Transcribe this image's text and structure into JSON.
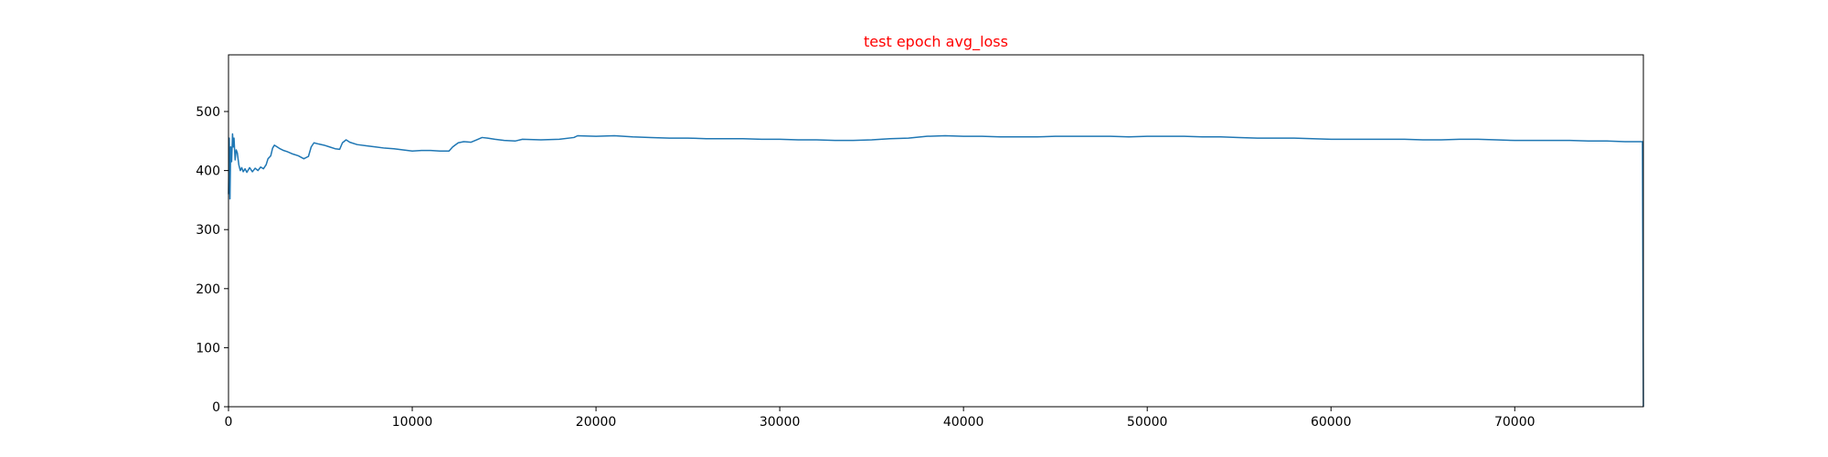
{
  "chart_data": {
    "type": "line",
    "title": "test epoch avg_loss",
    "title_color": "#ff0000",
    "xlabel": "",
    "ylabel": "",
    "xlim": [
      0,
      77000
    ],
    "ylim": [
      0,
      596
    ],
    "xticks": [
      0,
      10000,
      20000,
      30000,
      40000,
      50000,
      60000,
      70000
    ],
    "yticks": [
      0,
      100,
      200,
      300,
      400,
      500
    ],
    "grid": false,
    "line_color": "#1f77b4",
    "series": [
      {
        "values": [
          [
            0,
            360
          ],
          [
            40,
            455
          ],
          [
            80,
            352
          ],
          [
            120,
            440
          ],
          [
            170,
            415
          ],
          [
            220,
            462
          ],
          [
            260,
            440
          ],
          [
            300,
            455
          ],
          [
            360,
            418
          ],
          [
            420,
            435
          ],
          [
            480,
            430
          ],
          [
            560,
            410
          ],
          [
            640,
            400
          ],
          [
            720,
            405
          ],
          [
            800,
            398
          ],
          [
            900,
            403
          ],
          [
            1000,
            397
          ],
          [
            1150,
            405
          ],
          [
            1300,
            398
          ],
          [
            1450,
            404
          ],
          [
            1600,
            400
          ],
          [
            1750,
            406
          ],
          [
            1900,
            403
          ],
          [
            2050,
            410
          ],
          [
            2150,
            420
          ],
          [
            2300,
            425
          ],
          [
            2400,
            438
          ],
          [
            2500,
            443
          ],
          [
            2650,
            440
          ],
          [
            2800,
            437
          ],
          [
            3000,
            434
          ],
          [
            3200,
            432
          ],
          [
            3500,
            428
          ],
          [
            3800,
            425
          ],
          [
            4100,
            420
          ],
          [
            4350,
            424
          ],
          [
            4500,
            440
          ],
          [
            4650,
            447
          ],
          [
            4900,
            445
          ],
          [
            5200,
            443
          ],
          [
            5500,
            440
          ],
          [
            5800,
            437
          ],
          [
            6050,
            436
          ],
          [
            6200,
            447
          ],
          [
            6400,
            452
          ],
          [
            6600,
            448
          ],
          [
            7000,
            444
          ],
          [
            7500,
            442
          ],
          [
            8000,
            440
          ],
          [
            8500,
            438
          ],
          [
            9000,
            437
          ],
          [
            9500,
            435
          ],
          [
            10000,
            433
          ],
          [
            10500,
            434
          ],
          [
            11000,
            434
          ],
          [
            11500,
            433
          ],
          [
            12000,
            433
          ],
          [
            12200,
            440
          ],
          [
            12500,
            447
          ],
          [
            12800,
            449
          ],
          [
            13200,
            448
          ],
          [
            13500,
            452
          ],
          [
            13800,
            456
          ],
          [
            14100,
            455
          ],
          [
            14500,
            453
          ],
          [
            15000,
            451
          ],
          [
            15600,
            450
          ],
          [
            16000,
            453
          ],
          [
            17000,
            452
          ],
          [
            18000,
            453
          ],
          [
            18800,
            456
          ],
          [
            19000,
            459
          ],
          [
            20000,
            458
          ],
          [
            21000,
            459
          ],
          [
            22000,
            457
          ],
          [
            23000,
            456
          ],
          [
            24000,
            455
          ],
          [
            25000,
            455
          ],
          [
            26000,
            454
          ],
          [
            27000,
            454
          ],
          [
            28000,
            454
          ],
          [
            29000,
            453
          ],
          [
            30000,
            453
          ],
          [
            31000,
            452
          ],
          [
            32000,
            452
          ],
          [
            33000,
            451
          ],
          [
            34000,
            451
          ],
          [
            35000,
            452
          ],
          [
            36000,
            454
          ],
          [
            37000,
            455
          ],
          [
            38000,
            458
          ],
          [
            39000,
            459
          ],
          [
            40000,
            458
          ],
          [
            41000,
            458
          ],
          [
            42000,
            457
          ],
          [
            43000,
            457
          ],
          [
            44000,
            457
          ],
          [
            45000,
            458
          ],
          [
            46000,
            458
          ],
          [
            47000,
            458
          ],
          [
            48000,
            458
          ],
          [
            49000,
            457
          ],
          [
            50000,
            458
          ],
          [
            51000,
            458
          ],
          [
            52000,
            458
          ],
          [
            53000,
            457
          ],
          [
            54000,
            457
          ],
          [
            55000,
            456
          ],
          [
            56000,
            455
          ],
          [
            57000,
            455
          ],
          [
            58000,
            455
          ],
          [
            59000,
            454
          ],
          [
            60000,
            453
          ],
          [
            61000,
            453
          ],
          [
            62000,
            453
          ],
          [
            63000,
            453
          ],
          [
            64000,
            453
          ],
          [
            65000,
            452
          ],
          [
            66000,
            452
          ],
          [
            67000,
            453
          ],
          [
            68000,
            453
          ],
          [
            69000,
            452
          ],
          [
            70000,
            451
          ],
          [
            71000,
            451
          ],
          [
            72000,
            451
          ],
          [
            73000,
            451
          ],
          [
            74000,
            450
          ],
          [
            75000,
            450
          ],
          [
            76000,
            449
          ],
          [
            76950,
            449
          ],
          [
            77000,
            0
          ]
        ]
      }
    ]
  }
}
